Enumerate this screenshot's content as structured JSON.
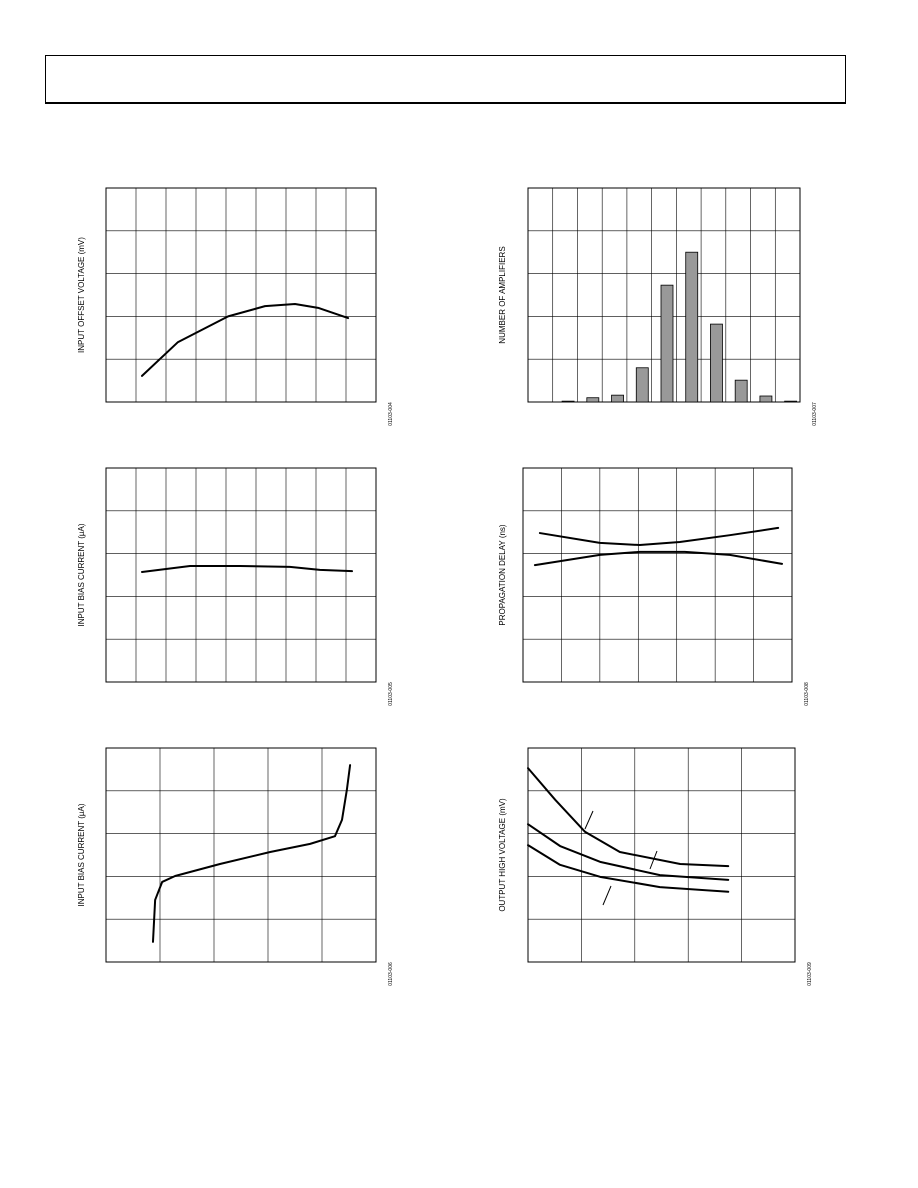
{
  "chart_data": [
    {
      "type": "line",
      "ylabel": "INPUT OFFSET VOLTAGE (mV)",
      "figure_id": "01103-004",
      "xlim": [
        0,
        9
      ],
      "ylim": [
        0,
        5
      ],
      "grid_columns": 9,
      "grid_rows": 5,
      "series": [
        {
          "color": "#000000",
          "x": [
            1.2,
            2.4,
            4.07,
            5.3,
            6.3,
            7.07,
            8.07
          ],
          "values": [
            0.61,
            1.4,
            2.0,
            2.24,
            2.29,
            2.2,
            1.96
          ]
        }
      ]
    },
    {
      "type": "bar",
      "ylabel": "NUMBER OF AMPLIFIERS",
      "figure_id": "01103-007",
      "ylim": [
        0,
        5
      ],
      "grid_columns": 11,
      "grid_rows": 5,
      "color": "#999999",
      "categories": [
        null,
        null,
        null,
        null,
        null,
        null,
        null,
        null,
        null,
        null,
        null
      ],
      "values": [
        0,
        0.02,
        0.1,
        0.16,
        0.8,
        2.73,
        3.5,
        1.82,
        0.51,
        0.14,
        0.02
      ]
    },
    {
      "type": "line",
      "ylabel": "INPUT BIAS CURRENT (µA)",
      "figure_id": "01103-005",
      "xlim": [
        0,
        9
      ],
      "ylim": [
        0,
        5
      ],
      "grid_columns": 9,
      "grid_rows": 5,
      "series": [
        {
          "color": "#000000",
          "x": [
            1.2,
            2.8,
            4.47,
            6.13,
            7.13,
            8.2
          ],
          "values": [
            2.57,
            2.71,
            2.71,
            2.69,
            2.62,
            2.59
          ]
        }
      ]
    },
    {
      "type": "line",
      "ylabel": "PROPAGATION DELAY (ns)",
      "figure_id": "01103-008",
      "xlim": [
        0,
        7
      ],
      "ylim": [
        0,
        5
      ],
      "grid_columns": 7,
      "grid_rows": 5,
      "series": [
        {
          "color": "#000000",
          "x": [
            0.44,
            2.0,
            3.04,
            4.08,
            5.38,
            6.64
          ],
          "values": [
            3.48,
            3.25,
            3.2,
            3.27,
            3.43,
            3.6
          ]
        },
        {
          "color": "#000000",
          "x": [
            0.31,
            2.0,
            3.04,
            4.21,
            5.38,
            6.74
          ],
          "values": [
            2.73,
            2.97,
            3.04,
            3.04,
            2.97,
            2.76
          ]
        }
      ]
    },
    {
      "type": "line",
      "ylabel": "INPUT BIAS CURRENT (µA)",
      "figure_id": "01103-006",
      "xlim": [
        0,
        5
      ],
      "ylim": [
        0,
        5
      ],
      "grid_columns": 5,
      "grid_rows": 5,
      "series": [
        {
          "color": "#000000",
          "x": [
            0.87,
            0.91,
            1.04,
            1.28,
            2.11,
            3.04,
            3.78,
            4.24,
            4.37,
            4.46,
            4.52
          ],
          "values": [
            0.47,
            1.45,
            1.87,
            2.01,
            2.29,
            2.57,
            2.76,
            2.94,
            3.32,
            4.02,
            4.6
          ]
        }
      ]
    },
    {
      "type": "line",
      "ylabel": "OUTPUT HIGH VOLTAGE (mV)",
      "figure_id": "01103-009",
      "xlim": [
        0,
        5
      ],
      "ylim": [
        0,
        5
      ],
      "grid_columns": 5,
      "grid_rows": 5,
      "series": [
        {
          "color": "#000000",
          "x": [
            0,
            0.51,
            1.07,
            1.72,
            2.85,
            3.75
          ],
          "values": [
            4.53,
            3.79,
            3.04,
            2.57,
            2.29,
            2.24
          ]
        },
        {
          "color": "#000000",
          "x": [
            0,
            0.6,
            1.35,
            2.47,
            3.75
          ],
          "values": [
            3.22,
            2.71,
            2.34,
            2.03,
            1.92
          ]
        },
        {
          "color": "#000000",
          "x": [
            0,
            0.6,
            1.35,
            2.47,
            3.75
          ],
          "values": [
            2.73,
            2.27,
            1.99,
            1.75,
            1.64
          ]
        }
      ]
    }
  ]
}
